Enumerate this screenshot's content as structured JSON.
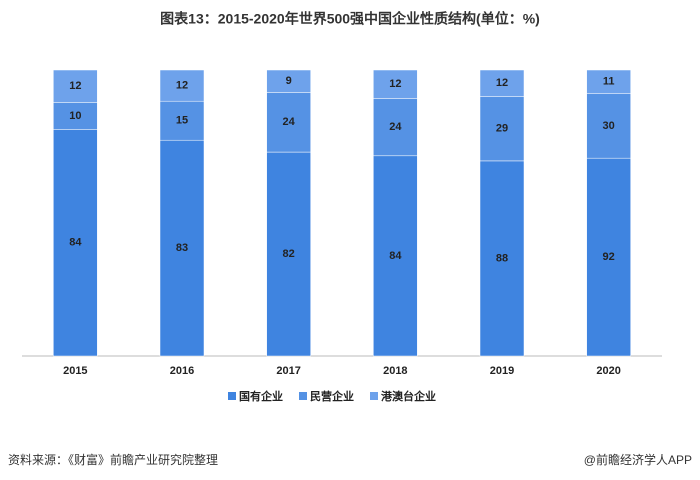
{
  "chart_data": {
    "type": "bar",
    "title": "图表13：2015-2020年世界500强中国企业性质结构(单位：%)",
    "categories": [
      "2015",
      "2016",
      "2017",
      "2018",
      "2019",
      "2020"
    ],
    "stacked": true,
    "normalize": true,
    "legend": "bottom",
    "series": [
      {
        "name": "国有企业",
        "color": "#3f84e0",
        "values": [
          84,
          83,
          82,
          84,
          88,
          92
        ]
      },
      {
        "name": "民营企业",
        "color": "#5592e4",
        "values": [
          10,
          15,
          24,
          24,
          29,
          30
        ]
      },
      {
        "name": "港澳台企业",
        "color": "#6ea2eb",
        "values": [
          12,
          12,
          9,
          12,
          12,
          11
        ]
      }
    ]
  },
  "footer": {
    "source": "资料来源：《财富》前瞻产业研究院整理",
    "credit": "@前瞻经济学人APP"
  }
}
